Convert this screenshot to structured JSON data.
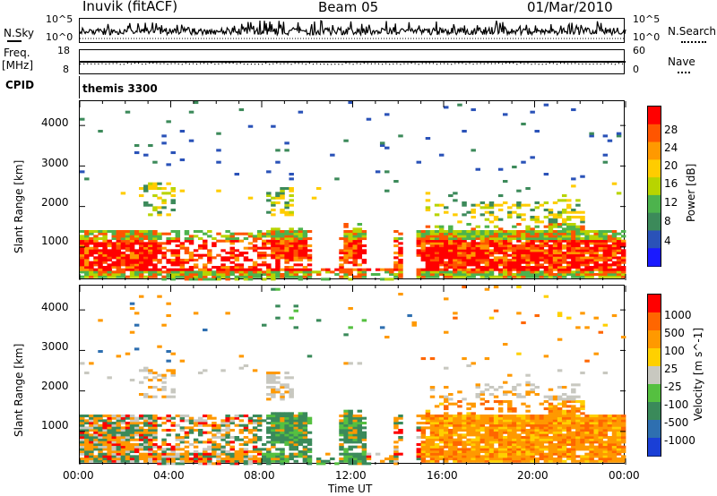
{
  "header": {
    "station": "Inuvik (fitACF)",
    "beam": "Beam 05",
    "date": "01/Mar/2010"
  },
  "noise_panel": {
    "left_label": "N.Sky",
    "right_label": "N.Search",
    "left_ticks": [
      "10^5",
      "10^0"
    ],
    "right_ticks": [
      "10^5",
      "10^0"
    ]
  },
  "freq_panel": {
    "left_label": "Freq.",
    "left_unit": "[MHz]",
    "right_label": "Nave",
    "left_ticks": [
      "18",
      "8"
    ],
    "right_ticks": [
      "60",
      "0"
    ]
  },
  "cpid_panel": {
    "label": "CPID",
    "value": "themis 3300"
  },
  "chart_data": [
    {
      "type": "heatmap",
      "name": "power",
      "ylabel": "Slant Range [km]",
      "yticks": [
        1000,
        2000,
        3000,
        4000
      ],
      "ylim": [
        180,
        4600
      ],
      "colorbar_label": "Power [dB]",
      "colorbar_ticks": [
        "28",
        "24",
        "20",
        "16",
        "12",
        "8",
        "4"
      ],
      "colors": [
        "#1a1aff",
        "#2a52b8",
        "#3c8a5a",
        "#4db34d",
        "#b8d400",
        "#ffcc00",
        "#ff9900",
        "#ff5500",
        "#ff0000"
      ],
      "xlim": [
        0,
        24
      ]
    },
    {
      "type": "heatmap",
      "name": "velocity",
      "ylabel": "Slant Range [km]",
      "yticks": [
        1000,
        2000,
        3000,
        4000
      ],
      "ylim": [
        180,
        4600
      ],
      "colorbar_label": "Velocity [m s^-1]",
      "colorbar_ticks": [
        "1000",
        "500",
        "100",
        "25",
        "-25",
        "-100",
        "-500",
        "-1000"
      ],
      "colors": [
        "#1a3fd6",
        "#2e6fb0",
        "#3a8a5a",
        "#55c040",
        "#c8c8c0",
        "#ffd000",
        "#ff9900",
        "#ff6600",
        "#ff0000"
      ],
      "xlim": [
        0,
        24
      ]
    }
  ],
  "x_axis": {
    "label": "Time UT",
    "ticks": [
      "00:00",
      "04:00",
      "08:00",
      "12:00",
      "16:00",
      "20:00",
      "00:00"
    ]
  }
}
